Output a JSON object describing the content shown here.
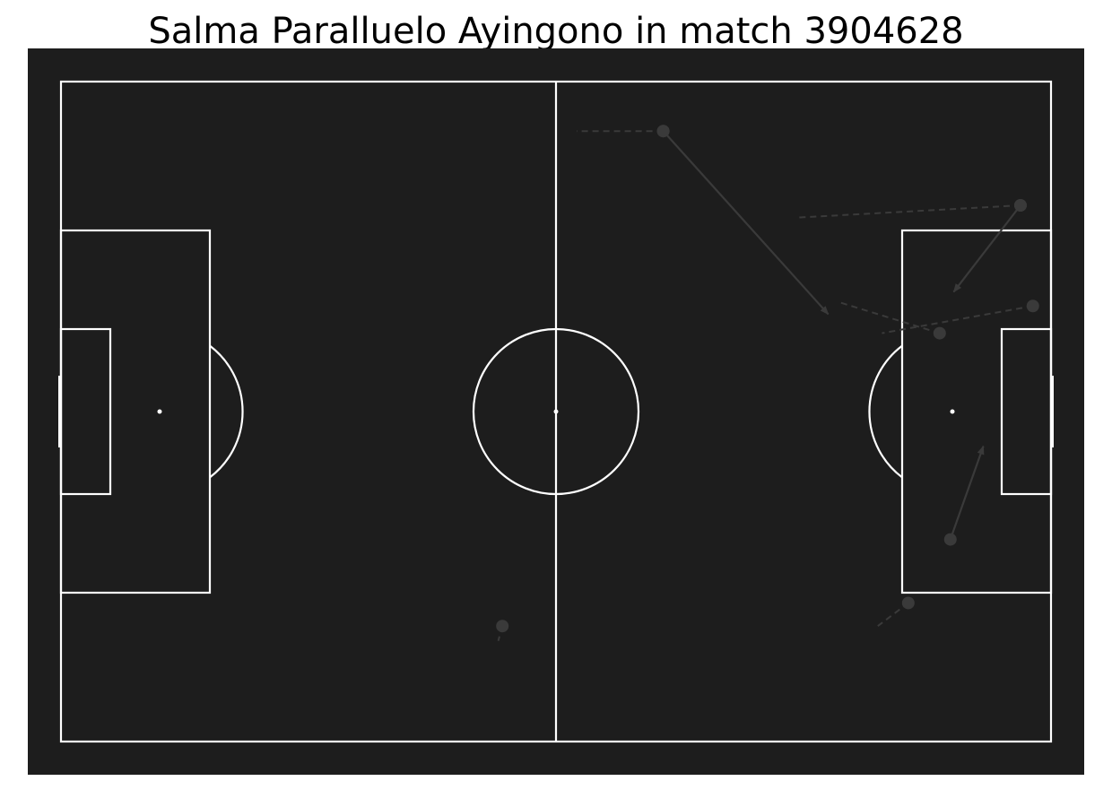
{
  "title": "Salma Paralluelo Ayingono in match 3904628",
  "colors": {
    "pitch": "#1d1d1d",
    "lines": "#ffffff",
    "events": "#3a3a3a",
    "title": "#000000"
  },
  "chart_data": {
    "type": "scatter",
    "pitch_type": "statsbomb",
    "xlim": [
      0,
      120
    ],
    "ylim": [
      0,
      80
    ],
    "grid": false,
    "legend": "none",
    "events": [
      {
        "kind": "carry",
        "start": [
          73,
          6
        ],
        "end": [
          62.5,
          6
        ]
      },
      {
        "kind": "pass",
        "start": [
          73,
          6
        ],
        "end": [
          93,
          28.2
        ]
      },
      {
        "kind": "carry",
        "start": [
          116.3,
          15
        ],
        "end": [
          89,
          16.5
        ]
      },
      {
        "kind": "pass",
        "start": [
          116.3,
          15
        ],
        "end": [
          108.2,
          25.5
        ]
      },
      {
        "kind": "carry",
        "start": [
          117.8,
          27.2
        ],
        "end": [
          99.5,
          30.5
        ]
      },
      {
        "kind": "carry",
        "start": [
          106.5,
          30.5
        ],
        "end": [
          94.5,
          26.8
        ]
      },
      {
        "kind": "pass",
        "start": [
          107.8,
          55.5
        ],
        "end": [
          111.8,
          44.2
        ]
      },
      {
        "kind": "carry",
        "start": [
          102.7,
          63.2
        ],
        "end": [
          99,
          66
        ]
      },
      {
        "kind": "carry",
        "start": [
          53.5,
          66
        ],
        "end": [
          53,
          67.8
        ]
      }
    ]
  }
}
